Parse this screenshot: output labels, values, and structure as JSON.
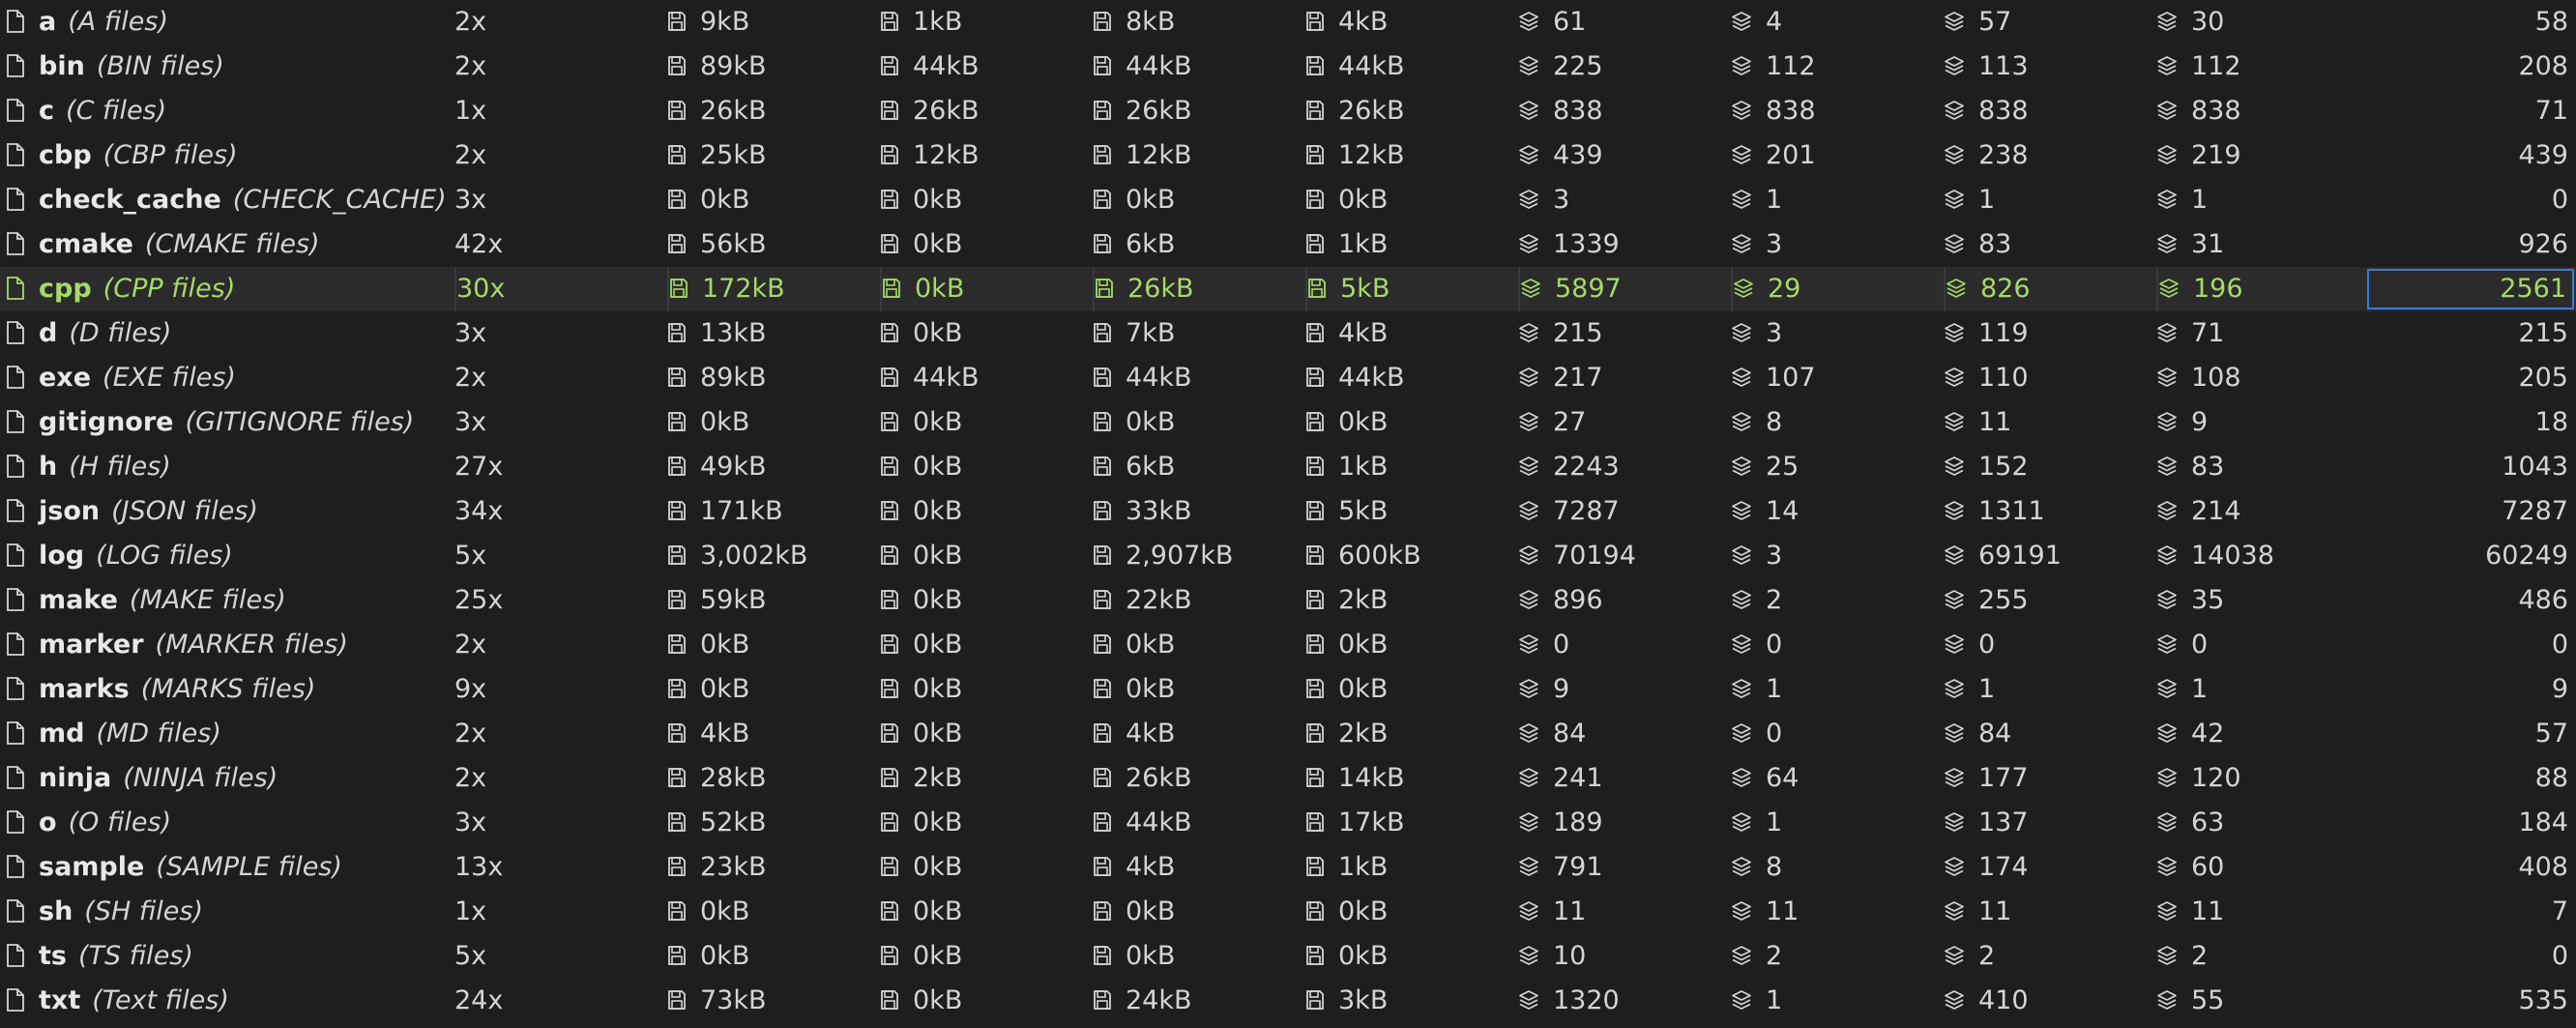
{
  "rows": [
    {
      "ext": "a",
      "desc": "A files",
      "count": "2x",
      "s1": "9kB",
      "s2": "1kB",
      "s3": "8kB",
      "s4": "4kB",
      "l1": "61",
      "l2": "4",
      "l3": "57",
      "l4": "30",
      "last": "58"
    },
    {
      "ext": "bin",
      "desc": "BIN files",
      "count": "2x",
      "s1": "89kB",
      "s2": "44kB",
      "s3": "44kB",
      "s4": "44kB",
      "l1": "225",
      "l2": "112",
      "l3": "113",
      "l4": "112",
      "last": "208"
    },
    {
      "ext": "c",
      "desc": "C files",
      "count": "1x",
      "s1": "26kB",
      "s2": "26kB",
      "s3": "26kB",
      "s4": "26kB",
      "l1": "838",
      "l2": "838",
      "l3": "838",
      "l4": "838",
      "last": "71"
    },
    {
      "ext": "cbp",
      "desc": "CBP files",
      "count": "2x",
      "s1": "25kB",
      "s2": "12kB",
      "s3": "12kB",
      "s4": "12kB",
      "l1": "439",
      "l2": "201",
      "l3": "238",
      "l4": "219",
      "last": "439"
    },
    {
      "ext": "check_cache",
      "desc": "CHECK_CACHE",
      "count": "3x",
      "s1": "0kB",
      "s2": "0kB",
      "s3": "0kB",
      "s4": "0kB",
      "l1": "3",
      "l2": "1",
      "l3": "1",
      "l4": "1",
      "last": "0"
    },
    {
      "ext": "cmake",
      "desc": "CMAKE files",
      "count": "42x",
      "s1": "56kB",
      "s2": "0kB",
      "s3": "6kB",
      "s4": "1kB",
      "l1": "1339",
      "l2": "3",
      "l3": "83",
      "l4": "31",
      "last": "926"
    },
    {
      "ext": "cpp",
      "desc": "CPP files",
      "count": "30x",
      "s1": "172kB",
      "s2": "0kB",
      "s3": "26kB",
      "s4": "5kB",
      "l1": "5897",
      "l2": "29",
      "l3": "826",
      "l4": "196",
      "last": "2561",
      "selected": true
    },
    {
      "ext": "d",
      "desc": "D files",
      "count": "3x",
      "s1": "13kB",
      "s2": "0kB",
      "s3": "7kB",
      "s4": "4kB",
      "l1": "215",
      "l2": "3",
      "l3": "119",
      "l4": "71",
      "last": "215"
    },
    {
      "ext": "exe",
      "desc": "EXE files",
      "count": "2x",
      "s1": "89kB",
      "s2": "44kB",
      "s3": "44kB",
      "s4": "44kB",
      "l1": "217",
      "l2": "107",
      "l3": "110",
      "l4": "108",
      "last": "205"
    },
    {
      "ext": "gitignore",
      "desc": "GITIGNORE files",
      "count": "3x",
      "s1": "0kB",
      "s2": "0kB",
      "s3": "0kB",
      "s4": "0kB",
      "l1": "27",
      "l2": "8",
      "l3": "11",
      "l4": "9",
      "last": "18"
    },
    {
      "ext": "h",
      "desc": "H files",
      "count": "27x",
      "s1": "49kB",
      "s2": "0kB",
      "s3": "6kB",
      "s4": "1kB",
      "l1": "2243",
      "l2": "25",
      "l3": "152",
      "l4": "83",
      "last": "1043"
    },
    {
      "ext": "json",
      "desc": "JSON files",
      "count": "34x",
      "s1": "171kB",
      "s2": "0kB",
      "s3": "33kB",
      "s4": "5kB",
      "l1": "7287",
      "l2": "14",
      "l3": "1311",
      "l4": "214",
      "last": "7287"
    },
    {
      "ext": "log",
      "desc": "LOG files",
      "count": "5x",
      "s1": "3,002kB",
      "s2": "0kB",
      "s3": "2,907kB",
      "s4": "600kB",
      "l1": "70194",
      "l2": "3",
      "l3": "69191",
      "l4": "14038",
      "last": "60249"
    },
    {
      "ext": "make",
      "desc": "MAKE files",
      "count": "25x",
      "s1": "59kB",
      "s2": "0kB",
      "s3": "22kB",
      "s4": "2kB",
      "l1": "896",
      "l2": "2",
      "l3": "255",
      "l4": "35",
      "last": "486"
    },
    {
      "ext": "marker",
      "desc": "MARKER files",
      "count": "2x",
      "s1": "0kB",
      "s2": "0kB",
      "s3": "0kB",
      "s4": "0kB",
      "l1": "0",
      "l2": "0",
      "l3": "0",
      "l4": "0",
      "last": "0"
    },
    {
      "ext": "marks",
      "desc": "MARKS files",
      "count": "9x",
      "s1": "0kB",
      "s2": "0kB",
      "s3": "0kB",
      "s4": "0kB",
      "l1": "9",
      "l2": "1",
      "l3": "1",
      "l4": "1",
      "last": "9"
    },
    {
      "ext": "md",
      "desc": "MD files",
      "count": "2x",
      "s1": "4kB",
      "s2": "0kB",
      "s3": "4kB",
      "s4": "2kB",
      "l1": "84",
      "l2": "0",
      "l3": "84",
      "l4": "42",
      "last": "57"
    },
    {
      "ext": "ninja",
      "desc": "NINJA files",
      "count": "2x",
      "s1": "28kB",
      "s2": "2kB",
      "s3": "26kB",
      "s4": "14kB",
      "l1": "241",
      "l2": "64",
      "l3": "177",
      "l4": "120",
      "last": "88"
    },
    {
      "ext": "o",
      "desc": "O files",
      "count": "3x",
      "s1": "52kB",
      "s2": "0kB",
      "s3": "44kB",
      "s4": "17kB",
      "l1": "189",
      "l2": "1",
      "l3": "137",
      "l4": "63",
      "last": "184"
    },
    {
      "ext": "sample",
      "desc": "SAMPLE files",
      "count": "13x",
      "s1": "23kB",
      "s2": "0kB",
      "s3": "4kB",
      "s4": "1kB",
      "l1": "791",
      "l2": "8",
      "l3": "174",
      "l4": "60",
      "last": "408"
    },
    {
      "ext": "sh",
      "desc": "SH files",
      "count": "1x",
      "s1": "0kB",
      "s2": "0kB",
      "s3": "0kB",
      "s4": "0kB",
      "l1": "11",
      "l2": "11",
      "l3": "11",
      "l4": "11",
      "last": "7"
    },
    {
      "ext": "ts",
      "desc": "TS files",
      "count": "5x",
      "s1": "0kB",
      "s2": "0kB",
      "s3": "0kB",
      "s4": "0kB",
      "l1": "10",
      "l2": "2",
      "l3": "2",
      "l4": "2",
      "last": "0"
    },
    {
      "ext": "txt",
      "desc": "Text files",
      "count": "24x",
      "s1": "73kB",
      "s2": "0kB",
      "s3": "24kB",
      "s4": "3kB",
      "l1": "1320",
      "l2": "1",
      "l3": "410",
      "l4": "55",
      "last": "535"
    }
  ],
  "icons": {
    "file": "file-icon",
    "size": "disk-icon",
    "lines": "layers-icon"
  },
  "colors": {
    "background": "#1e1e1e",
    "text": "#d4d4d4",
    "selected_text": "#a6d96a",
    "selected_row": "#2b2b2b",
    "focus_border": "#3b7dd8"
  }
}
